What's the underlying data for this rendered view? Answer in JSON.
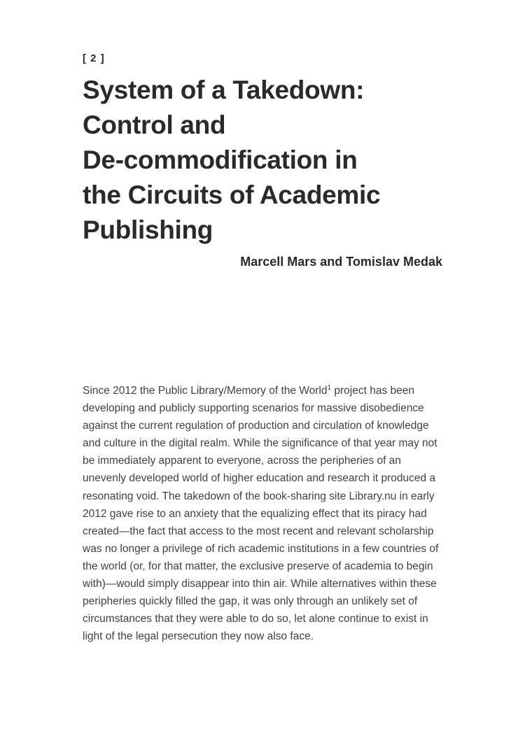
{
  "page": {
    "number_label": "[ 2 ]",
    "title": "System of a Takedown: Control and De-commodification in the Circuits of Academic Publishing",
    "title_lines": [
      "System of a Takedown:",
      "Control and",
      "De-commodification in",
      "the Circuits of Academic",
      "Publishing"
    ],
    "authors": "Marcell Mars and Tomislav Medak",
    "body": {
      "text_before_footnote": "Since 2012 the Public Library/Memory of the World",
      "footnote_marker": "1",
      "text_after_footnote": " project has been developing and publicly supporting scenarios for massive disobedience against the current regulation of production and circulation of knowledge and culture in the digital realm. While the significance of that year may not be immediately apparent to everyone, across the peripheries of an unevenly developed world of higher education and research it produced a resonating void. The takedown of the book-sharing site Library.nu in early 2012 gave rise to an anxiety that the equalizing effect that its piracy had created—the fact that access to the most recent and relevant scholarship was no longer a privilege of rich academic institutions in a few countries of the world (or, for that matter, the exclusive preserve of academia to begin with)—would simply disappear into thin air. While alternatives within these peripheries quickly filled the gap, it was only through an unlikely set of circumstances that they were able to do so, let alone continue to exist in light of the legal persecution they now also face."
    },
    "colors": {
      "heading": "#2a2a2a",
      "body_text": "#414141",
      "background": "#ffffff"
    }
  }
}
